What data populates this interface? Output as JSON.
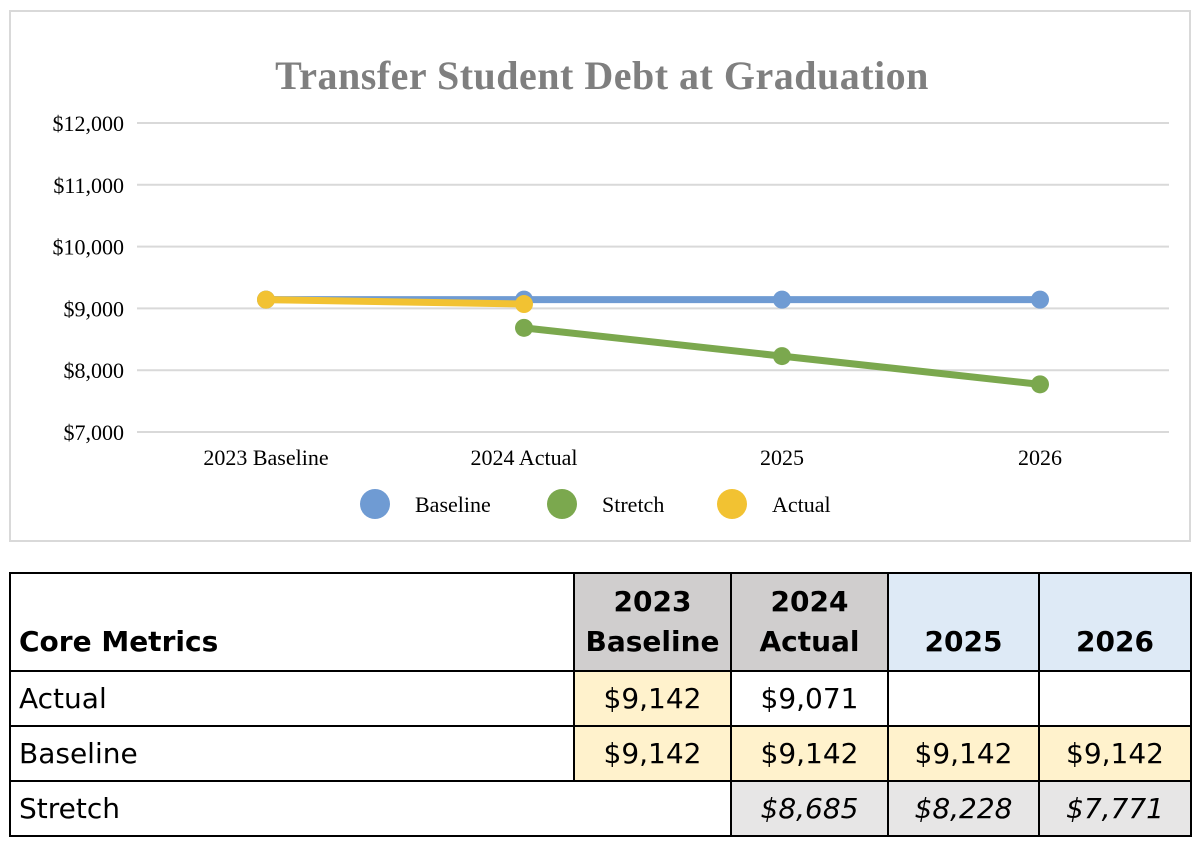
{
  "chart_data": {
    "type": "line",
    "title": "Transfer Student Debt at Graduation",
    "categories": [
      "2023 Baseline",
      "2024 Actual",
      "2025",
      "2026"
    ],
    "series": [
      {
        "name": "Baseline",
        "color": "#6f9bd3",
        "values": [
          9142,
          9142,
          9142,
          9142
        ]
      },
      {
        "name": "Stretch",
        "color": "#7ba84e",
        "values": [
          null,
          8685,
          8228,
          7771
        ]
      },
      {
        "name": "Actual",
        "color": "#f2c232",
        "values": [
          9142,
          9071,
          null,
          null
        ]
      }
    ],
    "ylim": [
      7000,
      12000
    ],
    "yticks": [
      7000,
      8000,
      9000,
      10000,
      11000,
      12000
    ],
    "ytick_labels": [
      "$7,000",
      "$8,000",
      "$9,000",
      "$10,000",
      "$11,000",
      "$12,000"
    ],
    "grid": true,
    "legend": "bottom"
  },
  "table": {
    "headers": [
      "Core Metrics",
      "2023 Baseline",
      "2024 Actual",
      "2025",
      "2026"
    ],
    "rows": [
      {
        "label": "Actual",
        "values": [
          "$9,142",
          "$9,071",
          "",
          ""
        ]
      },
      {
        "label": "Baseline",
        "values": [
          "$9,142",
          "$9,142",
          "$9,142",
          "$9,142"
        ]
      },
      {
        "label": "Stretch",
        "values": [
          "",
          "$8,685",
          "$8,228",
          "$7,771"
        ]
      }
    ]
  }
}
